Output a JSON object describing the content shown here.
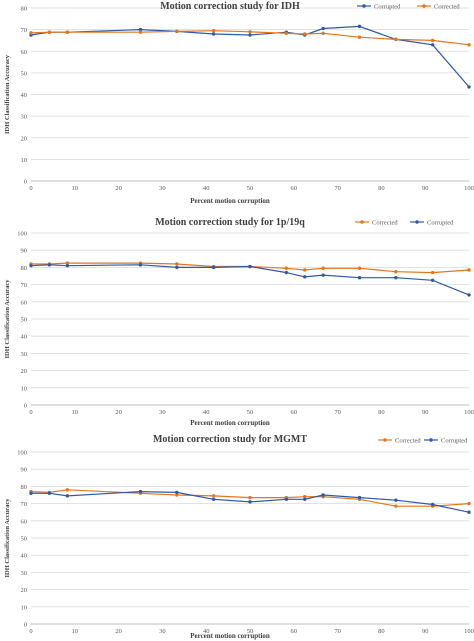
{
  "colors": {
    "corrupted": "#2e59a6",
    "corrected": "#e2761f",
    "grid": "#d9d9d9",
    "axis": "#bfbfbf",
    "text": "#595959"
  },
  "chart_data": [
    {
      "type": "line",
      "title": "Motion correction study for IDH",
      "xlabel": "Percent motion corruption",
      "ylabel": "IDH Classification Accuracy",
      "xlim": [
        0,
        100
      ],
      "ylim": [
        0,
        80
      ],
      "xticks": [
        0,
        10,
        20,
        30,
        40,
        50,
        60,
        70,
        80,
        90,
        100
      ],
      "yticks": [
        0,
        10,
        20,
        30,
        40,
        50,
        60,
        70,
        80
      ],
      "grid": true,
      "legend": "top-right",
      "legend_order": [
        "Corrupted",
        "Corrected"
      ],
      "series": [
        {
          "name": "Corrupted",
          "color": "#2e59a6",
          "x": [
            0,
            4.2,
            8.3,
            25,
            33.3,
            41.7,
            50,
            58.3,
            62.5,
            66.7,
            75,
            83.3,
            91.7,
            100
          ],
          "y": [
            67.5,
            68.8,
            68.8,
            70,
            69.2,
            68,
            67.5,
            68.8,
            67.5,
            70.5,
            71.5,
            65.5,
            63,
            43.5
          ]
        },
        {
          "name": "Corrected",
          "color": "#e2761f",
          "x": [
            0,
            4.2,
            8.3,
            25,
            33.3,
            41.7,
            50,
            58.3,
            62.5,
            66.7,
            75,
            83.3,
            91.7,
            100
          ],
          "y": [
            68.5,
            68.8,
            68.8,
            68.8,
            69.2,
            69.5,
            69,
            68.3,
            68,
            68.3,
            66.5,
            65.5,
            65,
            63
          ]
        }
      ]
    },
    {
      "type": "line",
      "title": "Motion correction study for 1p/19q",
      "xlabel": "Percent motion corruption",
      "ylabel": "IDH Classification Accuracy",
      "xlim": [
        0,
        100
      ],
      "ylim": [
        0,
        100
      ],
      "xticks": [
        0,
        10,
        20,
        30,
        40,
        50,
        60,
        70,
        80,
        90,
        100
      ],
      "yticks": [
        0,
        10,
        20,
        30,
        40,
        50,
        60,
        70,
        80,
        90,
        100
      ],
      "grid": true,
      "legend": "top-right",
      "legend_order": [
        "Corrected",
        "Corrupted"
      ],
      "series": [
        {
          "name": "Corrected",
          "color": "#e2761f",
          "x": [
            0,
            4.2,
            8.3,
            25,
            33.3,
            41.7,
            50,
            58.3,
            62.5,
            66.7,
            75,
            83.3,
            91.7,
            100
          ],
          "y": [
            82,
            82,
            82.5,
            82.5,
            82,
            80.5,
            80.5,
            79.5,
            78.5,
            79.5,
            79.5,
            77.5,
            77,
            78.5
          ]
        },
        {
          "name": "Corrupted",
          "color": "#2e59a6",
          "x": [
            0,
            4.2,
            8.3,
            25,
            33.3,
            41.7,
            50,
            58.3,
            62.5,
            66.7,
            75,
            83.3,
            91.7,
            100
          ],
          "y": [
            81,
            81.5,
            81,
            81.5,
            80,
            80,
            80.5,
            77,
            74.5,
            75.5,
            74,
            74,
            72.5,
            64
          ]
        }
      ]
    },
    {
      "type": "line",
      "title": "Motion correction study for MGMT",
      "xlabel": "Percent motion corruption",
      "ylabel": "IDH Classification Accuracy",
      "xlim": [
        0,
        100
      ],
      "ylim": [
        0,
        100
      ],
      "xticks": [
        0,
        10,
        20,
        30,
        40,
        50,
        60,
        70,
        80,
        90,
        100
      ],
      "yticks": [
        0,
        10,
        20,
        30,
        40,
        50,
        60,
        70,
        80,
        90,
        100
      ],
      "grid": true,
      "legend": "top-right",
      "legend_order": [
        "Corrected",
        "Corrupted"
      ],
      "series": [
        {
          "name": "Corrected",
          "color": "#e2761f",
          "x": [
            0,
            4.2,
            8.3,
            25,
            33.3,
            41.7,
            50,
            58.3,
            62.5,
            66.7,
            75,
            83.3,
            91.7,
            100
          ],
          "y": [
            77,
            76.5,
            78,
            76,
            75,
            74.5,
            73.5,
            73.5,
            74,
            74,
            72.5,
            68.5,
            68.5,
            70
          ]
        },
        {
          "name": "Corrupted",
          "color": "#2e59a6",
          "x": [
            0,
            4.2,
            8.3,
            25,
            33.3,
            41.7,
            50,
            58.3,
            62.5,
            66.7,
            75,
            83.3,
            91.7,
            100
          ],
          "y": [
            76,
            76,
            74.5,
            77,
            76.5,
            72.5,
            71,
            72.5,
            72.5,
            75,
            73.5,
            72,
            69.5,
            65
          ]
        }
      ]
    }
  ]
}
